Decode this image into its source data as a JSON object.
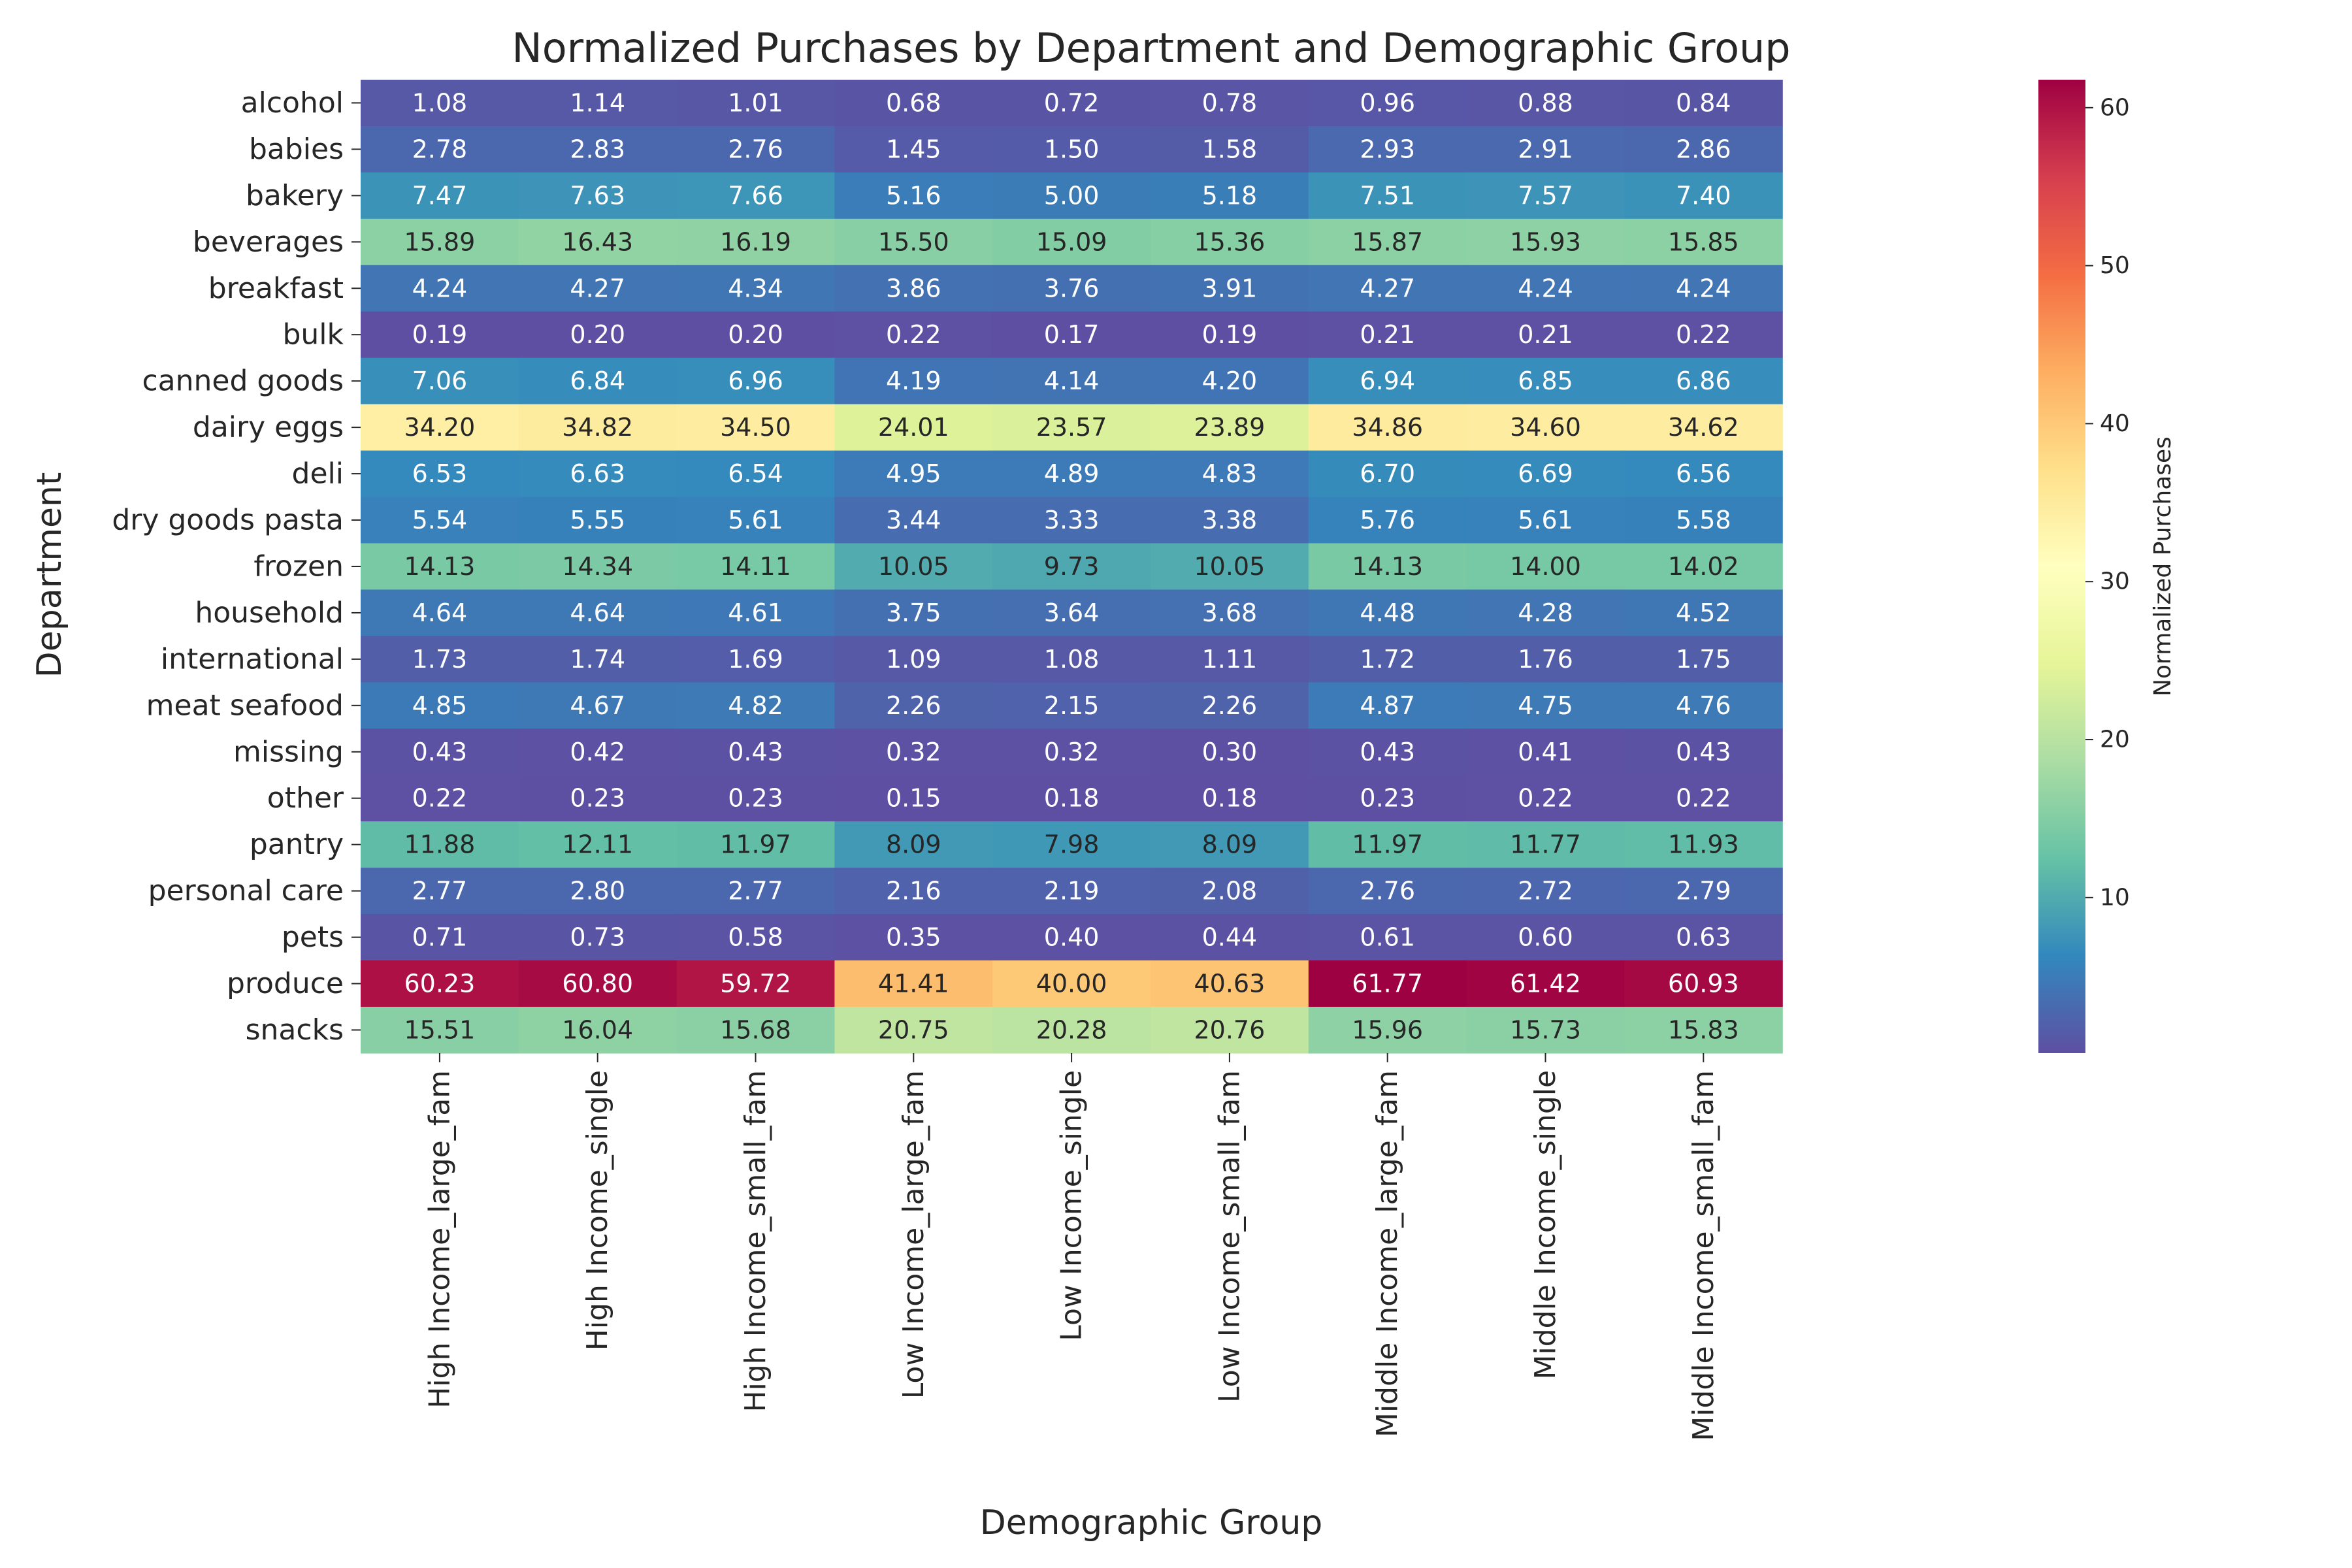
{
  "chart_data": {
    "type": "heatmap",
    "title": "Normalized Purchases by Department and Demographic Group",
    "xlabel": "Demographic Group",
    "ylabel": "Department",
    "colorbar_label": "Normalized Purchases",
    "colormap": "Spectral_r",
    "value_range": [
      0.15,
      61.77
    ],
    "colorbar_ticks": [
      10,
      20,
      30,
      40,
      50,
      60
    ],
    "columns": [
      "High Income_large_fam",
      "High Income_single",
      "High Income_small_fam",
      "Low Income_large_fam",
      "Low Income_single",
      "Low Income_small_fam",
      "Middle Income_large_fam",
      "Middle Income_single",
      "Middle Income_small_fam"
    ],
    "rows": [
      "alcohol",
      "babies",
      "bakery",
      "beverages",
      "breakfast",
      "bulk",
      "canned goods",
      "dairy eggs",
      "deli",
      "dry goods pasta",
      "frozen",
      "household",
      "international",
      "meat seafood",
      "missing",
      "other",
      "pantry",
      "personal care",
      "pets",
      "produce",
      "snacks"
    ],
    "values": [
      [
        1.08,
        1.14,
        1.01,
        0.68,
        0.72,
        0.78,
        0.96,
        0.88,
        0.84
      ],
      [
        2.78,
        2.83,
        2.76,
        1.45,
        1.5,
        1.58,
        2.93,
        2.91,
        2.86
      ],
      [
        7.47,
        7.63,
        7.66,
        5.16,
        5.0,
        5.18,
        7.51,
        7.57,
        7.4
      ],
      [
        15.89,
        16.43,
        16.19,
        15.5,
        15.09,
        15.36,
        15.87,
        15.93,
        15.85
      ],
      [
        4.24,
        4.27,
        4.34,
        3.86,
        3.76,
        3.91,
        4.27,
        4.24,
        4.24
      ],
      [
        0.19,
        0.2,
        0.2,
        0.22,
        0.17,
        0.19,
        0.21,
        0.21,
        0.22
      ],
      [
        7.06,
        6.84,
        6.96,
        4.19,
        4.14,
        4.2,
        6.94,
        6.85,
        6.86
      ],
      [
        34.2,
        34.82,
        34.5,
        24.01,
        23.57,
        23.89,
        34.86,
        34.6,
        34.62
      ],
      [
        6.53,
        6.63,
        6.54,
        4.95,
        4.89,
        4.83,
        6.7,
        6.69,
        6.56
      ],
      [
        5.54,
        5.55,
        5.61,
        3.44,
        3.33,
        3.38,
        5.76,
        5.61,
        5.58
      ],
      [
        14.13,
        14.34,
        14.11,
        10.05,
        9.73,
        10.05,
        14.13,
        14.0,
        14.02
      ],
      [
        4.64,
        4.64,
        4.61,
        3.75,
        3.64,
        3.68,
        4.48,
        4.28,
        4.52
      ],
      [
        1.73,
        1.74,
        1.69,
        1.09,
        1.08,
        1.11,
        1.72,
        1.76,
        1.75
      ],
      [
        4.85,
        4.67,
        4.82,
        2.26,
        2.15,
        2.26,
        4.87,
        4.75,
        4.76
      ],
      [
        0.43,
        0.42,
        0.43,
        0.32,
        0.32,
        0.3,
        0.43,
        0.41,
        0.43
      ],
      [
        0.22,
        0.23,
        0.23,
        0.15,
        0.18,
        0.18,
        0.23,
        0.22,
        0.22
      ],
      [
        11.88,
        12.11,
        11.97,
        8.09,
        7.98,
        8.09,
        11.97,
        11.77,
        11.93
      ],
      [
        2.77,
        2.8,
        2.77,
        2.16,
        2.19,
        2.08,
        2.76,
        2.72,
        2.79
      ],
      [
        0.71,
        0.73,
        0.58,
        0.35,
        0.4,
        0.44,
        0.61,
        0.6,
        0.63
      ],
      [
        60.23,
        60.8,
        59.72,
        41.41,
        40.0,
        40.63,
        61.77,
        61.42,
        60.93
      ],
      [
        15.51,
        16.04,
        15.68,
        20.75,
        20.28,
        20.76,
        15.96,
        15.73,
        15.83
      ]
    ]
  }
}
